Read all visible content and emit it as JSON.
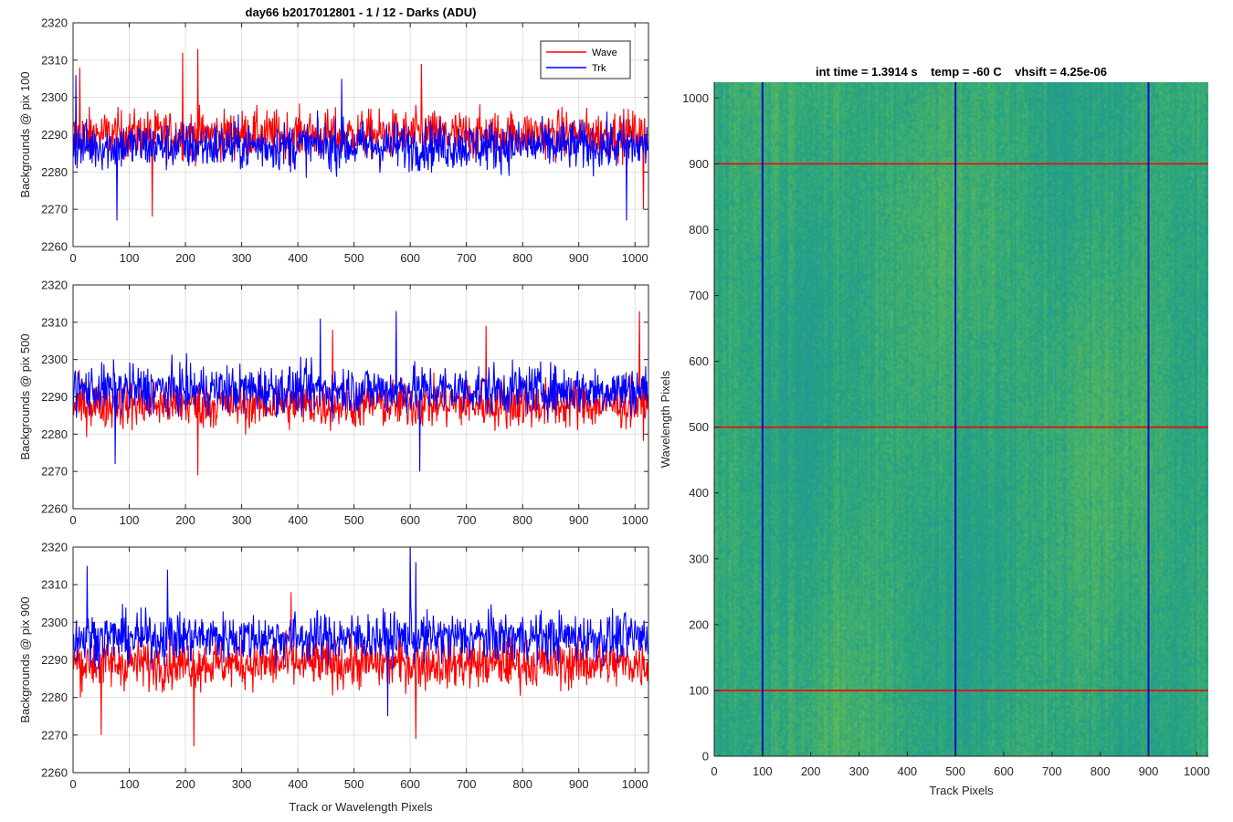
{
  "chart_data": [
    {
      "type": "line",
      "title": "day66 b2017012801 - 1 / 12 - Darks (ADU)",
      "xlabel": "",
      "ylabel": "Backgrounds @ pix 100",
      "xlim": [
        0,
        1024
      ],
      "ylim": [
        2260,
        2320
      ],
      "xticks": [
        0,
        100,
        200,
        300,
        400,
        500,
        600,
        700,
        800,
        900,
        1000
      ],
      "yticks": [
        2260,
        2270,
        2280,
        2290,
        2300,
        2310,
        2320
      ],
      "grid": true,
      "legend": "top-right",
      "series": [
        {
          "name": "Wave",
          "color": "#ff0000",
          "mean": 2290,
          "spread": 6,
          "min": 2268,
          "max": 2313,
          "spikes": [
            {
              "x": 222,
              "y": 2313
            },
            {
              "x": 195,
              "y": 2312
            },
            {
              "x": 12,
              "y": 2308
            },
            {
              "x": 141,
              "y": 2268
            },
            {
              "x": 620,
              "y": 2309
            },
            {
              "x": 1015,
              "y": 2270
            }
          ]
        },
        {
          "name": "Trk",
          "color": "#0000ff",
          "mean": 2287,
          "spread": 6,
          "min": 2267,
          "max": 2306,
          "spikes": [
            {
              "x": 5,
              "y": 2306
            },
            {
              "x": 478,
              "y": 2305
            },
            {
              "x": 78,
              "y": 2267
            },
            {
              "x": 985,
              "y": 2267
            }
          ]
        }
      ]
    },
    {
      "type": "line",
      "title": "",
      "xlabel": "",
      "ylabel": "Backgrounds @ pix 500",
      "xlim": [
        0,
        1024
      ],
      "ylim": [
        2260,
        2320
      ],
      "xticks": [
        0,
        100,
        200,
        300,
        400,
        500,
        600,
        700,
        800,
        900,
        1000
      ],
      "yticks": [
        2260,
        2270,
        2280,
        2290,
        2300,
        2310,
        2320
      ],
      "grid": true,
      "series": [
        {
          "name": "Wave",
          "color": "#ff0000",
          "mean": 2288,
          "spread": 6,
          "min": 2269,
          "max": 2313,
          "spikes": [
            {
              "x": 1008,
              "y": 2313
            },
            {
              "x": 222,
              "y": 2269
            },
            {
              "x": 735,
              "y": 2309
            },
            {
              "x": 462,
              "y": 2308
            }
          ]
        },
        {
          "name": "Trk",
          "color": "#0000ff",
          "mean": 2292,
          "spread": 6,
          "min": 2270,
          "max": 2313,
          "spikes": [
            {
              "x": 575,
              "y": 2313
            },
            {
              "x": 440,
              "y": 2311
            },
            {
              "x": 617,
              "y": 2270
            },
            {
              "x": 75,
              "y": 2272
            }
          ]
        }
      ]
    },
    {
      "type": "line",
      "title": "",
      "xlabel": "Track or Wavelength Pixels",
      "ylabel": "Backgrounds @ pix 900",
      "xlim": [
        0,
        1024
      ],
      "ylim": [
        2260,
        2320
      ],
      "xticks": [
        0,
        100,
        200,
        300,
        400,
        500,
        600,
        700,
        800,
        900,
        1000
      ],
      "yticks": [
        2260,
        2270,
        2280,
        2290,
        2300,
        2310,
        2320
      ],
      "grid": true,
      "series": [
        {
          "name": "Wave",
          "color": "#ff0000",
          "mean": 2289,
          "spread": 6,
          "min": 2267,
          "max": 2310,
          "spikes": [
            {
              "x": 215,
              "y": 2267
            },
            {
              "x": 610,
              "y": 2269
            },
            {
              "x": 50,
              "y": 2270
            },
            {
              "x": 388,
              "y": 2308
            }
          ]
        },
        {
          "name": "Trk",
          "color": "#0000ff",
          "mean": 2296,
          "spread": 6,
          "min": 2275,
          "max": 2320,
          "spikes": [
            {
              "x": 600,
              "y": 2320
            },
            {
              "x": 610,
              "y": 2316
            },
            {
              "x": 25,
              "y": 2315
            },
            {
              "x": 168,
              "y": 2314
            },
            {
              "x": 560,
              "y": 2275
            }
          ]
        }
      ]
    },
    {
      "type": "heatmap",
      "title": "int time = 1.3914 s    temp = -60 C    vhsift = 4.25e-06",
      "xlabel": "Track Pixels",
      "ylabel": "Wavelength Pixels",
      "xlim": [
        0,
        1024
      ],
      "ylim": [
        0,
        1024
      ],
      "xticks": [
        0,
        100,
        200,
        300,
        400,
        500,
        600,
        700,
        800,
        900,
        1000
      ],
      "yticks": [
        0,
        100,
        200,
        300,
        400,
        500,
        600,
        700,
        800,
        900,
        1000
      ],
      "colormap": [
        "#2a8aa8",
        "#22a286",
        "#5fba57",
        "#9ac83e"
      ],
      "vertical_lines": {
        "color": "#0000cc",
        "x": [
          100,
          500,
          900
        ]
      },
      "horizontal_lines": {
        "color": "#ff0000",
        "y": [
          100,
          500,
          900
        ]
      }
    }
  ]
}
